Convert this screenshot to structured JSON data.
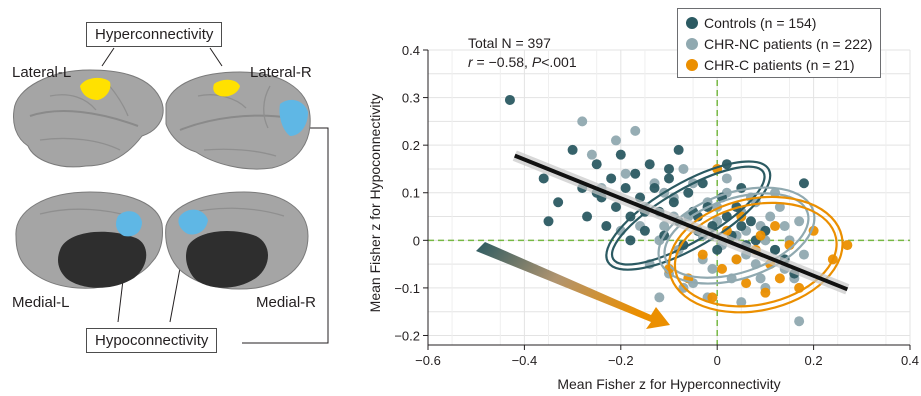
{
  "brain_panel": {
    "labels": {
      "lateral_l": "Lateral-L",
      "lateral_r": "Lateral-R",
      "medial_l": "Medial-L",
      "medial_r": "Medial-R"
    },
    "callouts": {
      "hyper": "Hyperconnectivity",
      "hypo": "Hypoconnectivity"
    },
    "colors": {
      "hyperconnectivity": "#ffe100",
      "hypoconnectivity": "#5fb7e5",
      "cortex": "#a9a9a9"
    }
  },
  "chart_data": {
    "type": "scatter",
    "annotation": {
      "line1": "Total N = 397",
      "r_symbol": "r",
      "line2_mid": " = −0.58, ",
      "p_symbol": "P",
      "line2_end": "<.001"
    },
    "xlabel": "Mean Fisher z for Hyperconnectivity",
    "ylabel": "Mean Fisher z for Hypoconnectivity",
    "xlim": [
      -0.6,
      0.4
    ],
    "ylim": [
      -0.22,
      0.4
    ],
    "xticks": [
      -0.6,
      -0.4,
      -0.2,
      0,
      0.2,
      0.4
    ],
    "yticks": [
      -0.2,
      -0.1,
      0,
      0.1,
      0.2,
      0.3,
      0.4
    ],
    "xtick_labels": [
      "−0.6",
      "−0.4",
      "−0.2",
      "0",
      "0.2",
      "0.4"
    ],
    "ytick_labels": [
      "−0.2",
      "−0.1",
      "0",
      "0.1",
      "0.2",
      "0.3",
      "0.4"
    ],
    "grid": true,
    "legend_position": "top-right",
    "reference_lines": {
      "x": 0,
      "y": 0,
      "color": "#77b843"
    },
    "regression": {
      "x": [
        -0.42,
        0.27
      ],
      "y": [
        0.178,
        -0.103
      ],
      "color": "#111111"
    },
    "series": [
      {
        "name": "Controls (n = 154)",
        "color": "#2b5a62",
        "ellipse": {
          "center": [
            -0.06,
            0.052
          ],
          "radius": [
            0.18,
            0.055
          ],
          "angle_deg": -30
        },
        "points": [
          [
            -0.43,
            0.295
          ],
          [
            -0.36,
            0.13
          ],
          [
            -0.33,
            0.08
          ],
          [
            -0.35,
            0.04
          ],
          [
            -0.3,
            0.19
          ],
          [
            -0.28,
            0.11
          ],
          [
            -0.27,
            0.05
          ],
          [
            -0.25,
            0.16
          ],
          [
            -0.24,
            0.09
          ],
          [
            -0.23,
            0.03
          ],
          [
            -0.22,
            0.13
          ],
          [
            -0.21,
            0.07
          ],
          [
            -0.2,
            0.18
          ],
          [
            -0.19,
            0.11
          ],
          [
            -0.18,
            0.05
          ],
          [
            -0.17,
            0.14
          ],
          [
            -0.16,
            0.09
          ],
          [
            -0.15,
            0.02
          ],
          [
            -0.14,
            0.16
          ],
          [
            -0.13,
            0.11
          ],
          [
            -0.12,
            0.06
          ],
          [
            -0.11,
            0.01
          ],
          [
            -0.1,
            0.13
          ],
          [
            -0.09,
            0.08
          ],
          [
            -0.08,
            0.04
          ],
          [
            -0.07,
            -0.01
          ],
          [
            -0.06,
            0.1
          ],
          [
            -0.05,
            0.06
          ],
          [
            -0.04,
            0.02
          ],
          [
            -0.03,
            0.12
          ],
          [
            -0.02,
            0.07
          ],
          [
            -0.01,
            0.03
          ],
          [
            0.0,
            -0.02
          ],
          [
            0.01,
            0.09
          ],
          [
            0.02,
            0.05
          ],
          [
            0.03,
            0.01
          ],
          [
            0.04,
            0.07
          ],
          [
            0.05,
            0.03
          ],
          [
            0.06,
            -0.01
          ],
          [
            0.07,
            0.04
          ],
          [
            0.08,
            0.0
          ],
          [
            0.1,
            0.02
          ],
          [
            0.12,
            -0.02
          ],
          [
            0.14,
            -0.04
          ],
          [
            0.16,
            -0.07
          ],
          [
            0.18,
            0.12
          ],
          [
            0.02,
            0.16
          ],
          [
            -0.08,
            0.19
          ],
          [
            -0.15,
            0.06
          ],
          [
            -0.25,
            0.1
          ],
          [
            -0.18,
            0.0
          ],
          [
            -0.1,
            0.15
          ],
          [
            0.05,
            0.11
          ],
          [
            -0.04,
            0.05
          ]
        ]
      },
      {
        "name": "CHR-NC patients (n = 222)",
        "color": "#90a9b0",
        "ellipse": {
          "center": [
            0.04,
            0.01
          ],
          "radius": [
            0.155,
            0.078
          ],
          "angle_deg": -18
        },
        "points": [
          [
            -0.28,
            0.25
          ],
          [
            -0.26,
            0.18
          ],
          [
            -0.24,
            0.11
          ],
          [
            -0.21,
            0.21
          ],
          [
            -0.19,
            0.14
          ],
          [
            -0.17,
            0.23
          ],
          [
            -0.15,
            0.07
          ],
          [
            -0.14,
            -0.05
          ],
          [
            -0.13,
            0.12
          ],
          [
            -0.12,
            -0.12
          ],
          [
            -0.11,
            0.03
          ],
          [
            -0.1,
            -0.07
          ],
          [
            -0.09,
            0.09
          ],
          [
            -0.08,
            -0.02
          ],
          [
            -0.07,
            0.15
          ],
          [
            -0.06,
            0.05
          ],
          [
            -0.05,
            -0.09
          ],
          [
            -0.04,
            0.02
          ],
          [
            -0.03,
            -0.04
          ],
          [
            -0.02,
            0.08
          ],
          [
            -0.01,
            -0.06
          ],
          [
            0.0,
            0.04
          ],
          [
            0.01,
            -0.01
          ],
          [
            0.02,
            0.1
          ],
          [
            0.03,
            -0.08
          ],
          [
            0.04,
            0.01
          ],
          [
            0.05,
            0.06
          ],
          [
            0.06,
            -0.03
          ],
          [
            0.07,
            0.09
          ],
          [
            0.08,
            -0.05
          ],
          [
            0.09,
            0.03
          ],
          [
            0.1,
            -0.1
          ],
          [
            0.11,
            0.05
          ],
          [
            0.12,
            -0.02
          ],
          [
            0.13,
            0.07
          ],
          [
            0.14,
            -0.06
          ],
          [
            0.15,
            0.0
          ],
          [
            0.16,
            -0.08
          ],
          [
            0.17,
            -0.17
          ],
          [
            0.17,
            0.04
          ],
          [
            -0.12,
            0.0
          ],
          [
            -0.05,
            0.12
          ],
          [
            0.02,
            0.13
          ],
          [
            0.08,
            0.08
          ],
          [
            -0.02,
            -0.12
          ],
          [
            0.05,
            -0.13
          ],
          [
            0.12,
            0.1
          ],
          [
            -0.09,
            0.05
          ],
          [
            0.0,
            0.07
          ],
          [
            0.06,
            0.02
          ],
          [
            -0.03,
            0.01
          ],
          [
            0.1,
            0.0
          ],
          [
            0.14,
            0.03
          ],
          [
            -0.16,
            0.03
          ],
          [
            -0.07,
            -0.1
          ],
          [
            0.04,
            -0.04
          ],
          [
            0.09,
            -0.08
          ],
          [
            -0.11,
            0.1
          ],
          [
            0.18,
            -0.03
          ],
          [
            -0.2,
            0.02
          ]
        ]
      },
      {
        "name": "CHR-C patients (n = 21)",
        "color": "#eb8f00",
        "ellipse": {
          "center": [
            0.08,
            -0.03
          ],
          "radius": [
            0.17,
            0.105
          ],
          "angle_deg": -12
        },
        "points": [
          [
            -0.06,
            -0.08
          ],
          [
            -0.03,
            -0.03
          ],
          [
            -0.01,
            -0.12
          ],
          [
            0.0,
            0.15
          ],
          [
            0.01,
            -0.06
          ],
          [
            0.02,
            0.02
          ],
          [
            0.04,
            -0.04
          ],
          [
            0.05,
            0.05
          ],
          [
            0.06,
            -0.09
          ],
          [
            0.08,
            -0.02
          ],
          [
            0.09,
            0.01
          ],
          [
            0.1,
            -0.11
          ],
          [
            0.11,
            -0.05
          ],
          [
            0.12,
            0.03
          ],
          [
            0.13,
            -0.08
          ],
          [
            0.15,
            -0.01
          ],
          [
            0.17,
            -0.1
          ],
          [
            0.2,
            0.02
          ],
          [
            0.24,
            -0.04
          ],
          [
            0.27,
            -0.01
          ],
          [
            -0.1,
            -0.06
          ]
        ]
      }
    ]
  }
}
